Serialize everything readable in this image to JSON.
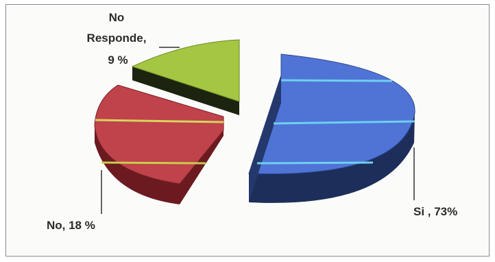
{
  "chart_data": {
    "type": "pie",
    "style": "3d-exploded",
    "slices": [
      {
        "label_text": "Si , 73%",
        "value": 73,
        "color": "#4f74d6",
        "side_color": "#1d2e5a",
        "stripe_color": "#6fd0ee"
      },
      {
        "label_text": "No, 18 %",
        "value": 18,
        "color": "#c0424a",
        "side_color": "#6b1a20",
        "stripe_color": "#d6d460"
      },
      {
        "label_text_line1": "No",
        "label_text_line2": "Responde,",
        "label_text_line3": "9 %",
        "value": 9,
        "color": "#a4c642",
        "side_color": "#1c2410"
      }
    ],
    "legend": "none"
  }
}
